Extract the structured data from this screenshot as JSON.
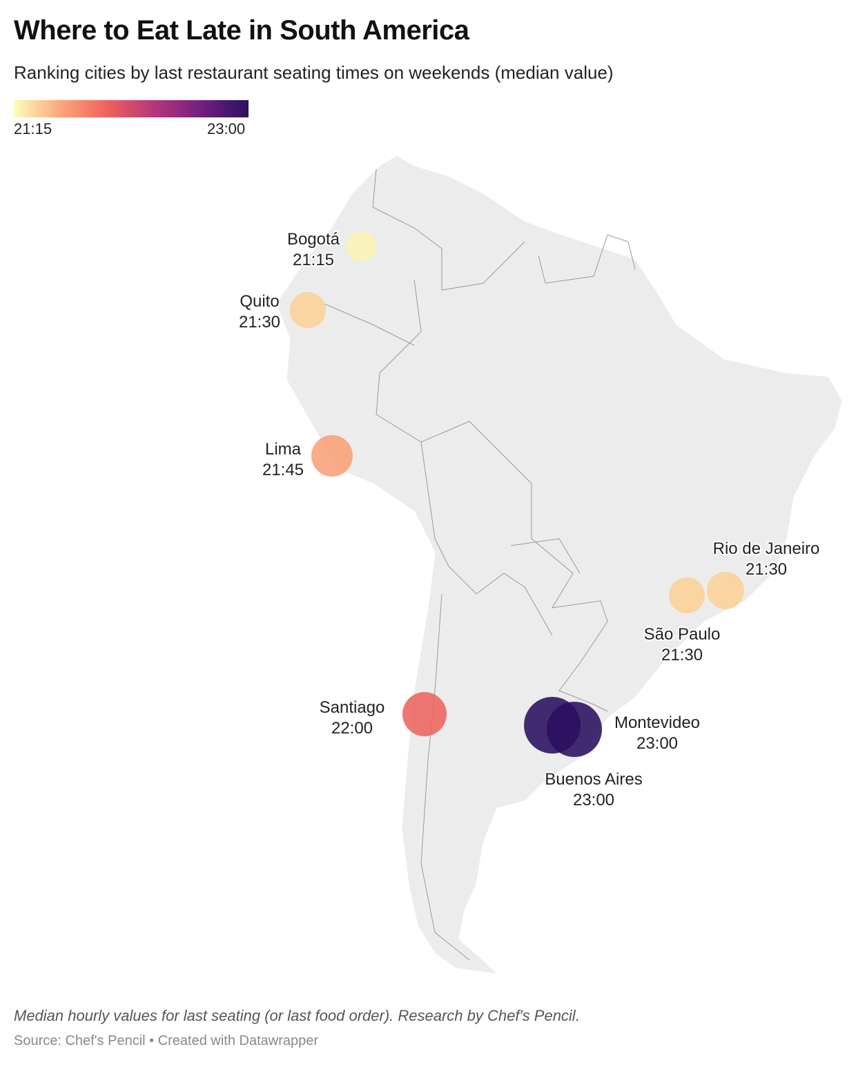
{
  "header": {
    "title": "Where to Eat Late in South America",
    "subtitle": "Ranking cities by last restaurant seating times on weekends (median value)"
  },
  "legend": {
    "min_label": "21:15",
    "max_label": "23:00",
    "colors": [
      "#fcfdbf",
      "#fca67a",
      "#f0605d",
      "#b5367a",
      "#711f81",
      "#2c115f"
    ]
  },
  "cities": [
    {
      "name": "Bogotá",
      "time": "21:15",
      "color": "#fbf3b3"
    },
    {
      "name": "Quito",
      "time": "21:30",
      "color": "#fcd096"
    },
    {
      "name": "Lima",
      "time": "21:45",
      "color": "#f99f76"
    },
    {
      "name": "Santiago",
      "time": "22:00",
      "color": "#ec6461"
    },
    {
      "name": "Buenos Aires",
      "time": "23:00",
      "color": "#2a0f5e"
    },
    {
      "name": "Montevideo",
      "time": "23:00",
      "color": "#2a0f5e"
    },
    {
      "name": "São Paulo",
      "time": "21:30",
      "color": "#fcd096"
    },
    {
      "name": "Rio de Janeiro",
      "time": "21:30",
      "color": "#fcd096"
    }
  ],
  "footer": {
    "notes": "Median hourly values for last seating (or last food order). Research by Chef's Pencil.",
    "source": "Source: Chef's Pencil • Created with Datawrapper"
  }
}
